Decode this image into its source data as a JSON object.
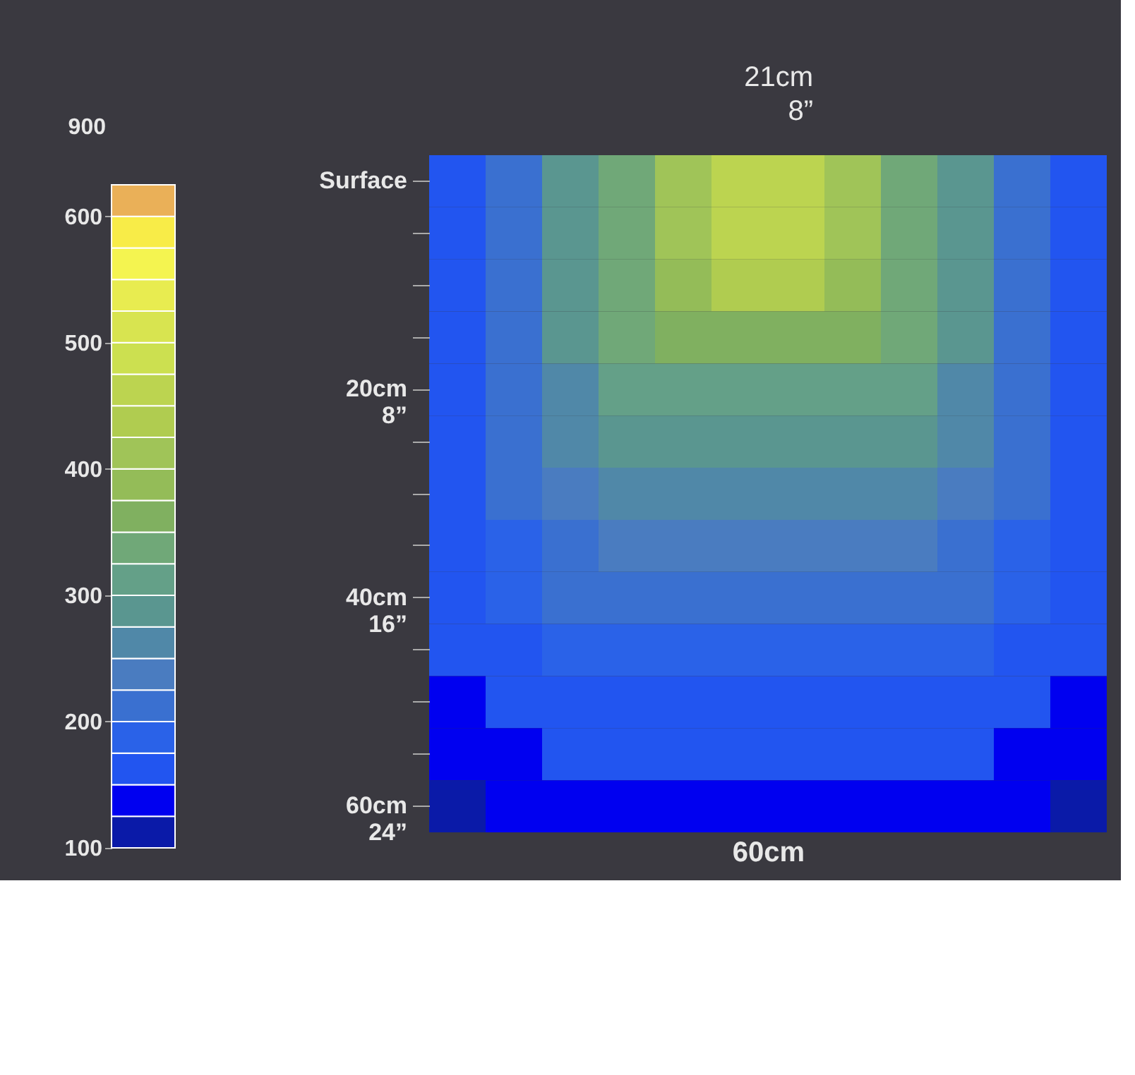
{
  "chart_data": {
    "type": "heatmap",
    "xlabel": "60cm",
    "annotations": [
      "21cm\n8”",
      "900"
    ],
    "categories": [
      null,
      null,
      null,
      null,
      null,
      null,
      null,
      null,
      null,
      null,
      null,
      null
    ],
    "y_categories": [
      "Surface",
      null,
      null,
      null,
      "20cm\n8”",
      null,
      null,
      null,
      "40cm\n16”",
      null,
      null,
      null,
      "60cm\n24”"
    ],
    "tick_labels": "y",
    "cells": [
      [
        160,
        212,
        278,
        340,
        400,
        470,
        470,
        400,
        340,
        278,
        212,
        160
      ],
      [
        160,
        212,
        278,
        340,
        400,
        465,
        465,
        400,
        340,
        278,
        212,
        160
      ],
      [
        160,
        212,
        278,
        338,
        395,
        430,
        430,
        395,
        338,
        278,
        212,
        160
      ],
      [
        160,
        212,
        276,
        330,
        360,
        365,
        365,
        360,
        330,
        276,
        212,
        160
      ],
      [
        160,
        211,
        270,
        308,
        317,
        317,
        317,
        317,
        308,
        270,
        211,
        160
      ],
      [
        160,
        208,
        258,
        282,
        287,
        287,
        287,
        287,
        282,
        258,
        208,
        160
      ],
      [
        160,
        203,
        243,
        255,
        257,
        257,
        257,
        257,
        255,
        243,
        203,
        160
      ],
      [
        159,
        196,
        224,
        230,
        230,
        230,
        230,
        230,
        230,
        224,
        196,
        159
      ],
      [
        157,
        187,
        203,
        207,
        207,
        207,
        207,
        207,
        207,
        203,
        187,
        157
      ],
      [
        152,
        174,
        183,
        185,
        185,
        185,
        185,
        185,
        185,
        183,
        174,
        152
      ],
      [
        143,
        158,
        165,
        167,
        167,
        167,
        167,
        167,
        167,
        165,
        158,
        143
      ],
      [
        132,
        145,
        151,
        154,
        154,
        154,
        154,
        154,
        154,
        151,
        145,
        132
      ],
      [
        122,
        132,
        137,
        140,
        141,
        142,
        142,
        141,
        140,
        137,
        132,
        122
      ]
    ],
    "clim": [
      100,
      625
    ],
    "cticks": [
      100,
      200,
      300,
      400,
      500,
      600
    ]
  }
}
